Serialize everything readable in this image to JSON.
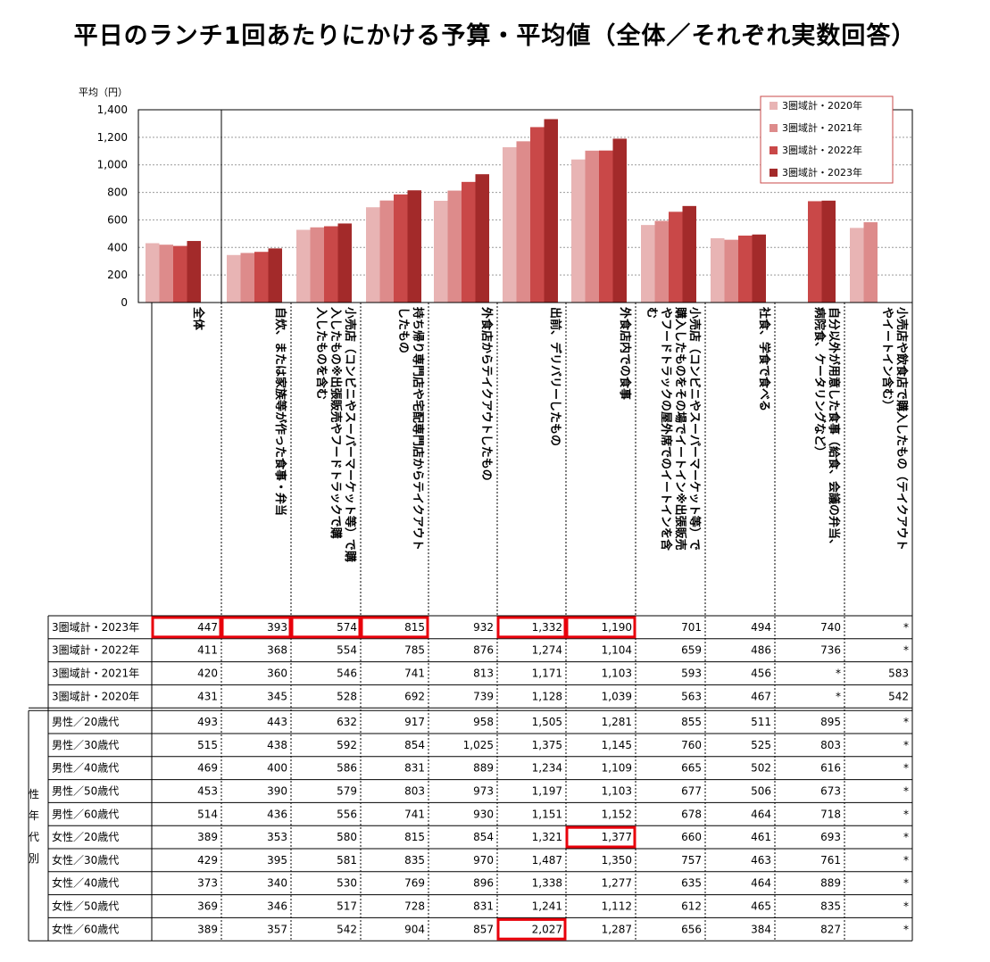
{
  "title": "平日のランチ1回あたりにかける予算・平均値（全体／それぞれ実数回答）",
  "chart_data": {
    "type": "bar",
    "ylabel": "平均（円）",
    "ylim": [
      0,
      1400
    ],
    "yticks": [
      "0",
      "200",
      "400",
      "600",
      "800",
      "1,000",
      "1,200",
      "1,400"
    ],
    "legend_position": "top-right",
    "categories": [
      [
        "全体"
      ],
      [
        "自炊、または家族等が作った食事・弁当"
      ],
      [
        "小売店（コンビニやスーパーマーケット等）で購",
        "入したもの※出張販売やフードトラックで購",
        "入したものを含む"
      ],
      [
        "持ち帰り専門店や宅配専門店からテイクアウト",
        "したもの"
      ],
      [
        "外食店からテイクアウトしたもの"
      ],
      [
        "出前、デリバリーしたもの"
      ],
      [
        "外食店内での食事"
      ],
      [
        "小売店（コンビニやスーパーマーケット等）で",
        "購入したものをその場でイートイン※出張販売",
        "やフードトラックの屋外席でのイートインを含",
        "む"
      ],
      [
        "社食、学食で食べる"
      ],
      [
        "自分以外が用意した食事（給食、会議の弁当、",
        "病院食、ケータリングなど）"
      ],
      [
        "小売店や飲食店で購入したもの（テイクアウト",
        "やイートイン含む）"
      ]
    ],
    "series": [
      {
        "name": "3圏域計・2020年",
        "color": "#e8b4b4",
        "values": [
          431,
          345,
          528,
          692,
          739,
          1128,
          1039,
          563,
          467,
          null,
          542
        ]
      },
      {
        "name": "3圏域計・2021年",
        "color": "#dd8b8b",
        "values": [
          420,
          360,
          546,
          741,
          813,
          1171,
          1103,
          593,
          456,
          null,
          583
        ]
      },
      {
        "name": "3圏域計・2022年",
        "color": "#c94848",
        "values": [
          411,
          368,
          554,
          785,
          876,
          1274,
          1104,
          659,
          486,
          736,
          null
        ]
      },
      {
        "name": "3圏域計・2023年",
        "color": "#a32a2a",
        "values": [
          447,
          393,
          574,
          815,
          932,
          1332,
          1190,
          701,
          494,
          740,
          null
        ]
      }
    ]
  },
  "table": {
    "group_label": [
      "性",
      "年",
      "代",
      "別"
    ],
    "rows": [
      {
        "label": "3圏域計・2023年",
        "values": [
          "447",
          "393",
          "574",
          "815",
          "932",
          "1,332",
          "1,190",
          "701",
          "494",
          "740",
          "*"
        ]
      },
      {
        "label": "3圏域計・2022年",
        "values": [
          "411",
          "368",
          "554",
          "785",
          "876",
          "1,274",
          "1,104",
          "659",
          "486",
          "736",
          "*"
        ]
      },
      {
        "label": "3圏域計・2021年",
        "values": [
          "420",
          "360",
          "546",
          "741",
          "813",
          "1,171",
          "1,103",
          "593",
          "456",
          "*",
          "583"
        ]
      },
      {
        "label": "3圏域計・2020年",
        "values": [
          "431",
          "345",
          "528",
          "692",
          "739",
          "1,128",
          "1,039",
          "563",
          "467",
          "*",
          "542"
        ]
      },
      {
        "label": "男性／20歳代",
        "values": [
          "493",
          "443",
          "632",
          "917",
          "958",
          "1,505",
          "1,281",
          "855",
          "511",
          "895",
          "*"
        ]
      },
      {
        "label": "男性／30歳代",
        "values": [
          "515",
          "438",
          "592",
          "854",
          "1,025",
          "1,375",
          "1,145",
          "760",
          "525",
          "803",
          "*"
        ]
      },
      {
        "label": "男性／40歳代",
        "values": [
          "469",
          "400",
          "586",
          "831",
          "889",
          "1,234",
          "1,109",
          "665",
          "502",
          "616",
          "*"
        ]
      },
      {
        "label": "男性／50歳代",
        "values": [
          "453",
          "390",
          "579",
          "803",
          "973",
          "1,197",
          "1,103",
          "677",
          "506",
          "673",
          "*"
        ]
      },
      {
        "label": "男性／60歳代",
        "values": [
          "514",
          "436",
          "556",
          "741",
          "930",
          "1,151",
          "1,152",
          "678",
          "464",
          "718",
          "*"
        ]
      },
      {
        "label": "女性／20歳代",
        "values": [
          "389",
          "353",
          "580",
          "815",
          "854",
          "1,321",
          "1,377",
          "660",
          "461",
          "693",
          "*"
        ]
      },
      {
        "label": "女性／30歳代",
        "values": [
          "429",
          "395",
          "581",
          "835",
          "970",
          "1,487",
          "1,350",
          "757",
          "463",
          "761",
          "*"
        ]
      },
      {
        "label": "女性／40歳代",
        "values": [
          "373",
          "340",
          "530",
          "769",
          "896",
          "1,338",
          "1,277",
          "635",
          "464",
          "889",
          "*"
        ]
      },
      {
        "label": "女性／50歳代",
        "values": [
          "369",
          "346",
          "517",
          "728",
          "831",
          "1,241",
          "1,112",
          "612",
          "465",
          "835",
          "*"
        ]
      },
      {
        "label": "女性／60歳代",
        "values": [
          "389",
          "357",
          "542",
          "904",
          "857",
          "2,027",
          "1,287",
          "656",
          "384",
          "827",
          "*"
        ]
      }
    ],
    "highlights": [
      [
        0,
        0
      ],
      [
        0,
        1
      ],
      [
        0,
        2
      ],
      [
        0,
        3
      ],
      [
        0,
        5
      ],
      [
        0,
        6
      ],
      [
        9,
        6
      ],
      [
        13,
        5
      ]
    ],
    "highlight_color": "#e8000b"
  }
}
